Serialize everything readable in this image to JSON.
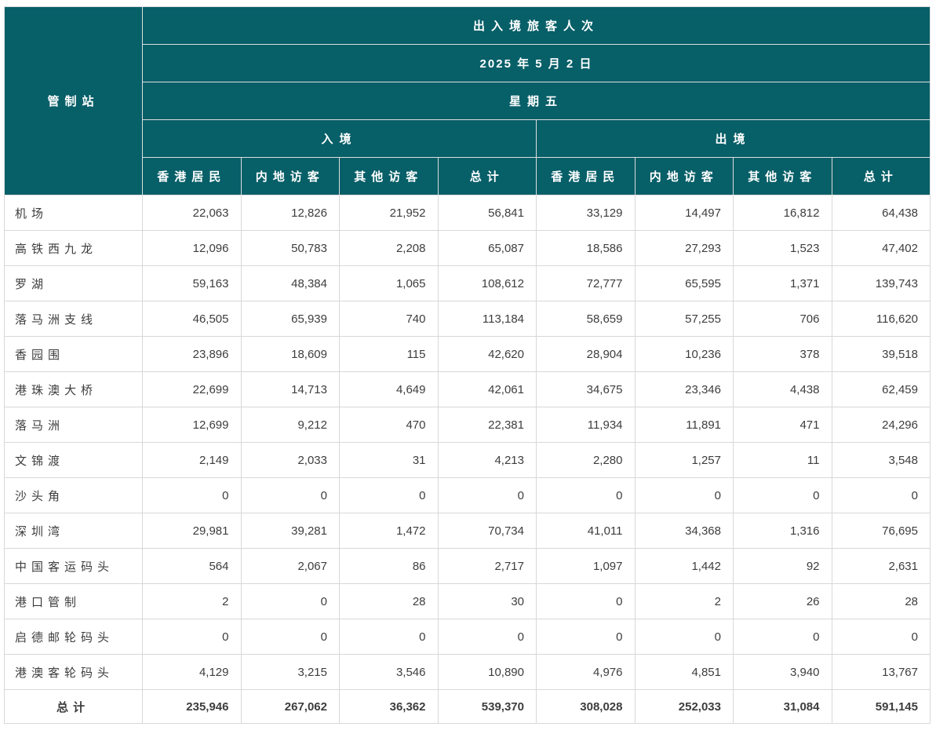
{
  "colors": {
    "header_bg": "#075f68",
    "header_text": "#ffffff",
    "body_text": "#3d3d3d",
    "grid_line": "#d8d8d8",
    "header_line": "#dedede"
  },
  "table": {
    "corner_label": "管制站",
    "title": "出入境旅客人次",
    "date": "2025 年 5 月 2 日",
    "weekday": "星期五",
    "directions": {
      "arrival": "入境",
      "departure": "出境"
    },
    "sub_headers": [
      "香港居民",
      "内地访客",
      "其他访客",
      "总计"
    ],
    "rows": [
      {
        "station": "机场",
        "values": [
          "22,063",
          "12,826",
          "21,952",
          "56,841",
          "33,129",
          "14,497",
          "16,812",
          "64,438"
        ]
      },
      {
        "station": "高铁西九龙",
        "values": [
          "12,096",
          "50,783",
          "2,208",
          "65,087",
          "18,586",
          "27,293",
          "1,523",
          "47,402"
        ]
      },
      {
        "station": "罗湖",
        "values": [
          "59,163",
          "48,384",
          "1,065",
          "108,612",
          "72,777",
          "65,595",
          "1,371",
          "139,743"
        ]
      },
      {
        "station": "落马洲支线",
        "values": [
          "46,505",
          "65,939",
          "740",
          "113,184",
          "58,659",
          "57,255",
          "706",
          "116,620"
        ]
      },
      {
        "station": "香园围",
        "values": [
          "23,896",
          "18,609",
          "115",
          "42,620",
          "28,904",
          "10,236",
          "378",
          "39,518"
        ]
      },
      {
        "station": "港珠澳大桥",
        "values": [
          "22,699",
          "14,713",
          "4,649",
          "42,061",
          "34,675",
          "23,346",
          "4,438",
          "62,459"
        ]
      },
      {
        "station": "落马洲",
        "values": [
          "12,699",
          "9,212",
          "470",
          "22,381",
          "11,934",
          "11,891",
          "471",
          "24,296"
        ]
      },
      {
        "station": "文锦渡",
        "values": [
          "2,149",
          "2,033",
          "31",
          "4,213",
          "2,280",
          "1,257",
          "11",
          "3,548"
        ]
      },
      {
        "station": "沙头角",
        "values": [
          "0",
          "0",
          "0",
          "0",
          "0",
          "0",
          "0",
          "0"
        ]
      },
      {
        "station": "深圳湾",
        "values": [
          "29,981",
          "39,281",
          "1,472",
          "70,734",
          "41,011",
          "34,368",
          "1,316",
          "76,695"
        ]
      },
      {
        "station": "中国客运码头",
        "values": [
          "564",
          "2,067",
          "86",
          "2,717",
          "1,097",
          "1,442",
          "92",
          "2,631"
        ]
      },
      {
        "station": "港口管制",
        "values": [
          "2",
          "0",
          "28",
          "30",
          "0",
          "2",
          "26",
          "28"
        ]
      },
      {
        "station": "启德邮轮码头",
        "values": [
          "0",
          "0",
          "0",
          "0",
          "0",
          "0",
          "0",
          "0"
        ]
      },
      {
        "station": "港澳客轮码头",
        "values": [
          "4,129",
          "3,215",
          "3,546",
          "10,890",
          "4,976",
          "4,851",
          "3,940",
          "13,767"
        ]
      }
    ],
    "total_row": {
      "station": "总计",
      "values": [
        "235,946",
        "267,062",
        "36,362",
        "539,370",
        "308,028",
        "252,033",
        "31,084",
        "591,145"
      ]
    }
  },
  "chart_data": {
    "type": "table",
    "title": "出入境旅客人次",
    "date": "2025年5月2日",
    "weekday": "星期五",
    "column_groups": [
      "入境",
      "出境"
    ],
    "columns": [
      "管制站",
      "入境-香港居民",
      "入境-内地访客",
      "入境-其他访客",
      "入境-总计",
      "出境-香港居民",
      "出境-内地访客",
      "出境-其他访客",
      "出境-总计"
    ],
    "rows": [
      [
        "机场",
        22063,
        12826,
        21952,
        56841,
        33129,
        14497,
        16812,
        64438
      ],
      [
        "高铁西九龙",
        12096,
        50783,
        2208,
        65087,
        18586,
        27293,
        1523,
        47402
      ],
      [
        "罗湖",
        59163,
        48384,
        1065,
        108612,
        72777,
        65595,
        1371,
        139743
      ],
      [
        "落马洲支线",
        46505,
        65939,
        740,
        113184,
        58659,
        57255,
        706,
        116620
      ],
      [
        "香园围",
        23896,
        18609,
        115,
        42620,
        28904,
        10236,
        378,
        39518
      ],
      [
        "港珠澳大桥",
        22699,
        14713,
        4649,
        42061,
        34675,
        23346,
        4438,
        62459
      ],
      [
        "落马洲",
        12699,
        9212,
        470,
        22381,
        11934,
        11891,
        471,
        24296
      ],
      [
        "文锦渡",
        2149,
        2033,
        31,
        4213,
        2280,
        1257,
        11,
        3548
      ],
      [
        "沙头角",
        0,
        0,
        0,
        0,
        0,
        0,
        0,
        0
      ],
      [
        "深圳湾",
        29981,
        39281,
        1472,
        70734,
        41011,
        34368,
        1316,
        76695
      ],
      [
        "中国客运码头",
        564,
        2067,
        86,
        2717,
        1097,
        1442,
        92,
        2631
      ],
      [
        "港口管制",
        2,
        0,
        28,
        30,
        0,
        2,
        26,
        28
      ],
      [
        "启德邮轮码头",
        0,
        0,
        0,
        0,
        0,
        0,
        0,
        0
      ],
      [
        "港澳客轮码头",
        4129,
        3215,
        3546,
        10890,
        4976,
        4851,
        3940,
        13767
      ],
      [
        "总计",
        235946,
        267062,
        36362,
        539370,
        308028,
        252033,
        31084,
        591145
      ]
    ]
  }
}
